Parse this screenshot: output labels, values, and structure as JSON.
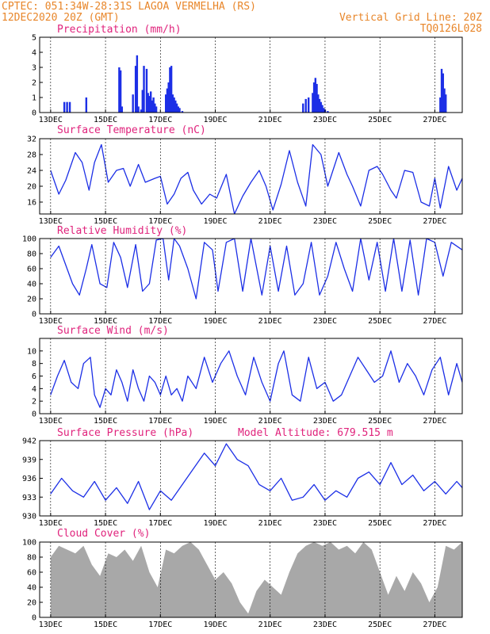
{
  "header": {
    "line1": "CPTEC:   051:34W-28:31S   LAGOA VERMELHA (RS)",
    "line2_left": "12DEC2020 20Z (GMT)",
    "line2_right": "Vertical Grid Line: 20Z",
    "line3_right": "TQ0126L028"
  },
  "colors": {
    "header": "#e8862a",
    "title": "#e0237c",
    "line": "#1c2fe6",
    "cloud": "#a8a8a8"
  },
  "chart_data": [
    {
      "type": "bar",
      "title": "Precipitation (mm/h)",
      "yticks": [
        0,
        1,
        2,
        3,
        4,
        5
      ],
      "ylim": [
        0,
        5
      ],
      "xticks": [
        "13DEC",
        "15DEC",
        "17DEC",
        "19DEC",
        "21DEC",
        "23DEC",
        "25DEC",
        "27DEC"
      ],
      "x": [
        0.5,
        0.6,
        0.7,
        1.3,
        2.5,
        2.55,
        2.6,
        3.0,
        3.1,
        3.15,
        3.2,
        3.3,
        3.35,
        3.4,
        3.5,
        3.55,
        3.6,
        3.65,
        3.7,
        3.75,
        3.8,
        3.85,
        4.2,
        4.25,
        4.3,
        4.35,
        4.4,
        4.45,
        4.5,
        4.55,
        4.6,
        4.65,
        4.7,
        4.8,
        9.2,
        9.3,
        9.4,
        9.55,
        9.6,
        9.65,
        9.7,
        9.75,
        9.8,
        9.85,
        9.9,
        9.95,
        10.0,
        10.1,
        14.2,
        14.25,
        14.3,
        14.35,
        14.4
      ],
      "values": [
        0.7,
        0.7,
        0.7,
        1.0,
        3.0,
        2.8,
        0.4,
        1.2,
        3.1,
        3.8,
        0.4,
        0.2,
        1.5,
        3.1,
        2.9,
        1.3,
        1.1,
        1.4,
        0.8,
        1.0,
        0.6,
        0.4,
        1.2,
        1.6,
        2.0,
        3.0,
        3.1,
        1.2,
        1.0,
        0.8,
        0.6,
        0.4,
        0.3,
        0.1,
        0.6,
        0.9,
        1.0,
        1.3,
        2.0,
        2.3,
        1.9,
        1.2,
        0.9,
        0.7,
        0.5,
        0.3,
        0.2,
        0.1,
        1.0,
        2.9,
        2.6,
        1.6,
        1.2
      ]
    },
    {
      "type": "line",
      "title": "Surface Temperature (nC)",
      "yticks": [
        16,
        20,
        24,
        28,
        32
      ],
      "ylim": [
        13,
        32
      ],
      "xticks": [
        "13DEC",
        "15DEC",
        "17DEC",
        "19DEC",
        "21DEC",
        "23DEC",
        "25DEC",
        "27DEC"
      ],
      "x": [
        0,
        0.3,
        0.55,
        0.9,
        1.15,
        1.4,
        1.6,
        1.85,
        2.1,
        2.4,
        2.65,
        2.9,
        3.2,
        3.45,
        3.8,
        4.0,
        4.25,
        4.5,
        4.75,
        5.0,
        5.2,
        5.5,
        5.8,
        6.05,
        6.4,
        6.7,
        7.0,
        7.3,
        7.6,
        7.85,
        8.1,
        8.4,
        8.7,
        9.0,
        9.3,
        9.55,
        9.85,
        10.1,
        10.5,
        10.8,
        11.0,
        11.3,
        11.6,
        11.9,
        12.1,
        12.4,
        12.6,
        12.9,
        13.2,
        13.5,
        13.8,
        14.0,
        14.2,
        14.5,
        14.8,
        15.0
      ],
      "values": [
        24,
        18,
        21.5,
        28.5,
        26,
        19,
        26,
        30.5,
        21,
        24,
        24.5,
        20,
        25.5,
        21,
        22,
        22.5,
        15.5,
        18,
        22,
        23.5,
        19,
        15.5,
        18,
        17,
        23,
        13,
        17.5,
        21,
        24,
        20,
        14,
        20.5,
        29,
        21,
        15,
        30.5,
        28,
        20,
        28.5,
        23,
        20,
        15,
        24,
        25,
        23,
        19,
        17,
        24,
        23.5,
        16,
        15,
        22,
        14.5,
        25,
        19,
        22
      ]
    },
    {
      "type": "line",
      "title": "Relative Humidity (%)",
      "yticks": [
        0,
        20,
        40,
        60,
        80,
        100
      ],
      "ylim": [
        0,
        100
      ],
      "xticks": [
        "13DEC",
        "15DEC",
        "17DEC",
        "19DEC",
        "21DEC",
        "23DEC",
        "25DEC",
        "27DEC"
      ],
      "x": [
        0,
        0.3,
        0.8,
        1.05,
        1.3,
        1.5,
        1.8,
        2.05,
        2.3,
        2.55,
        2.8,
        3.1,
        3.35,
        3.6,
        3.85,
        4.1,
        4.3,
        4.5,
        4.7,
        5.0,
        5.3,
        5.6,
        5.9,
        6.1,
        6.4,
        6.7,
        7.0,
        7.3,
        7.7,
        8.0,
        8.3,
        8.6,
        8.9,
        9.2,
        9.5,
        9.8,
        10.1,
        10.4,
        10.7,
        11.0,
        11.3,
        11.6,
        11.9,
        12.2,
        12.5,
        12.8,
        13.1,
        13.4,
        13.7,
        14.0,
        14.3,
        14.6,
        15.0
      ],
      "values": [
        75,
        90,
        40,
        25,
        60,
        92,
        40,
        35,
        95,
        75,
        35,
        92,
        30,
        40,
        98,
        100,
        45,
        100,
        90,
        60,
        20,
        95,
        85,
        30,
        95,
        100,
        30,
        100,
        25,
        90,
        30,
        90,
        25,
        40,
        95,
        25,
        50,
        95,
        60,
        30,
        100,
        45,
        95,
        30,
        100,
        30,
        98,
        25,
        100,
        95,
        50,
        95,
        85
      ]
    },
    {
      "type": "line",
      "title": "Surface Wind (m/s)",
      "yticks": [
        0,
        2,
        4,
        6,
        8,
        10
      ],
      "ylim": [
        0,
        12
      ],
      "xticks": [
        "13DEC",
        "15DEC",
        "17DEC",
        "19DEC",
        "21DEC",
        "23DEC",
        "25DEC",
        "27DEC"
      ],
      "x": [
        0,
        0.25,
        0.5,
        0.75,
        1.0,
        1.2,
        1.45,
        1.6,
        1.8,
        2.0,
        2.2,
        2.4,
        2.6,
        2.8,
        3.0,
        3.2,
        3.4,
        3.6,
        3.8,
        4.0,
        4.2,
        4.4,
        4.6,
        4.8,
        5.0,
        5.3,
        5.6,
        5.9,
        6.2,
        6.5,
        6.8,
        7.1,
        7.4,
        7.7,
        8.0,
        8.3,
        8.5,
        8.8,
        9.1,
        9.4,
        9.7,
        10.0,
        10.3,
        10.6,
        10.9,
        11.2,
        11.5,
        11.8,
        12.1,
        12.4,
        12.7,
        13.0,
        13.3,
        13.6,
        13.9,
        14.2,
        14.5,
        14.8,
        15.0
      ],
      "values": [
        3,
        6,
        8.5,
        5,
        4,
        8,
        9,
        3,
        1,
        4,
        3,
        7,
        5,
        2,
        7,
        4,
        2,
        6,
        5,
        3,
        6,
        3,
        4,
        2,
        6,
        4,
        9,
        5,
        8,
        10,
        6,
        3,
        9,
        5,
        2,
        8,
        10,
        3,
        2,
        9,
        4,
        5,
        2,
        3,
        6,
        9,
        7,
        5,
        6,
        10,
        5,
        8,
        6,
        3,
        7,
        9,
        3,
        8,
        5
      ]
    },
    {
      "type": "line",
      "title": "Surface Pressure (hPa)",
      "subtitle": "Model Altitude: 679.515 m",
      "yticks": [
        930,
        933,
        936,
        939,
        942
      ],
      "ylim": [
        930,
        942
      ],
      "xticks": [
        "13DEC",
        "15DEC",
        "17DEC",
        "19DEC",
        "21DEC",
        "23DEC",
        "25DEC",
        "27DEC"
      ],
      "x": [
        0,
        0.4,
        0.8,
        1.2,
        1.6,
        2.0,
        2.4,
        2.8,
        3.2,
        3.6,
        4.0,
        4.4,
        4.8,
        5.2,
        5.6,
        6.0,
        6.4,
        6.8,
        7.2,
        7.6,
        8.0,
        8.4,
        8.8,
        9.2,
        9.6,
        10.0,
        10.4,
        10.8,
        11.2,
        11.6,
        12.0,
        12.4,
        12.8,
        13.2,
        13.6,
        14.0,
        14.4,
        14.8,
        15.0
      ],
      "values": [
        933.5,
        936,
        934,
        933,
        935.5,
        932.5,
        934.5,
        932,
        935.5,
        931,
        934,
        932.5,
        935,
        937.5,
        940,
        938,
        941.5,
        939,
        938,
        935,
        934,
        936,
        932.5,
        933,
        935,
        932.5,
        934,
        933,
        936,
        937,
        935,
        938.5,
        935,
        936.5,
        934,
        935.5,
        933.5,
        935.5,
        934.5
      ]
    },
    {
      "type": "area",
      "title": "Cloud Cover (%)",
      "yticks": [
        0,
        20,
        40,
        60,
        80,
        100
      ],
      "ylim": [
        0,
        100
      ],
      "xticks": [
        "13DEC",
        "15DEC",
        "17DEC",
        "19DEC",
        "21DEC",
        "23DEC",
        "25DEC",
        "27DEC"
      ],
      "x": [
        0,
        0.3,
        0.6,
        0.9,
        1.2,
        1.5,
        1.8,
        2.1,
        2.4,
        2.7,
        3.0,
        3.3,
        3.6,
        3.9,
        4.2,
        4.5,
        4.8,
        5.1,
        5.4,
        5.7,
        6.0,
        6.3,
        6.6,
        6.9,
        7.2,
        7.5,
        7.8,
        8.1,
        8.4,
        8.7,
        9.0,
        9.3,
        9.6,
        9.9,
        10.2,
        10.5,
        10.8,
        11.1,
        11.4,
        11.7,
        12.0,
        12.3,
        12.6,
        12.9,
        13.2,
        13.5,
        13.8,
        14.1,
        14.4,
        14.7,
        15.0
      ],
      "values": [
        80,
        95,
        90,
        85,
        95,
        70,
        55,
        85,
        80,
        90,
        75,
        95,
        60,
        40,
        90,
        85,
        95,
        100,
        90,
        70,
        50,
        60,
        45,
        20,
        5,
        35,
        50,
        40,
        30,
        60,
        85,
        95,
        100,
        95,
        100,
        90,
        95,
        85,
        100,
        90,
        60,
        30,
        55,
        35,
        60,
        45,
        20,
        40,
        95,
        90,
        100
      ]
    }
  ]
}
